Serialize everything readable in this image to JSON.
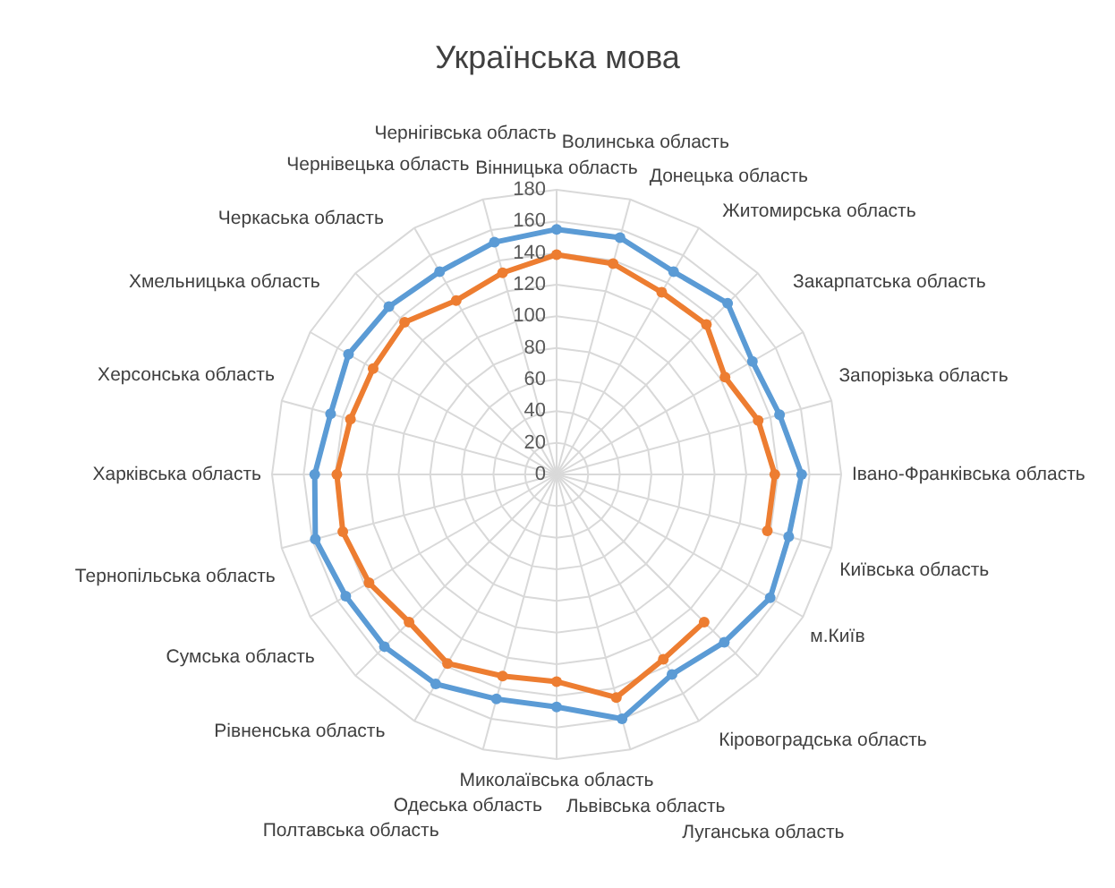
{
  "chart_data": {
    "type": "radar",
    "title": "Українська мова",
    "categories": [
      "Вінницька область",
      "Волинська область",
      "Донецька область",
      "Житомирська область",
      "Закарпатська область",
      "Запорізька область",
      "Івано-Франківська область",
      "Київська область",
      "м.Київ",
      "Кіровоградська область",
      "Луганська область",
      "Львівська область",
      "Миколаївська область",
      "Одеська область",
      "Полтавська область",
      "Рівненська область",
      "Сумська область",
      "Тернопільська область",
      "Харківська область",
      "Херсонська область",
      "Хмельницька область",
      "Черкаська область",
      "Чернівецька область",
      "Чернігівська область"
    ],
    "series": [
      {
        "color": "#5b9bd5",
        "values": [
          155,
          155,
          148,
          153,
          143,
          146,
          155,
          152,
          156,
          150,
          146,
          160,
          147,
          147,
          153,
          154,
          154,
          158,
          153,
          148,
          152,
          150,
          148,
          152
        ]
      },
      {
        "color": "#ed7d31",
        "values": [
          139,
          138,
          133,
          134,
          123,
          132,
          138,
          138,
          null,
          132,
          135,
          146,
          131,
          132,
          138,
          132,
          137,
          140,
          139,
          135,
          134,
          136,
          127,
          132
        ]
      }
    ],
    "ylim": [
      0,
      180
    ],
    "yticks": [
      0,
      20,
      40,
      60,
      80,
      100,
      120,
      140,
      160,
      180
    ],
    "grid": true,
    "legend": false,
    "marker": "circle"
  }
}
